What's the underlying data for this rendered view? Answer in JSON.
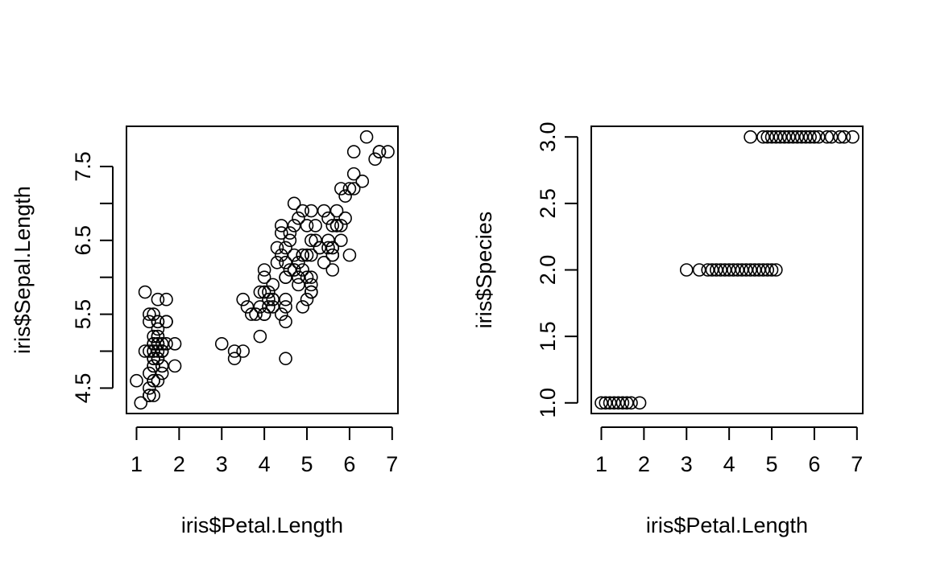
{
  "chart_data": [
    {
      "type": "scatter",
      "title": "",
      "xlabel": "iris$Petal.Length",
      "ylabel": "iris$Sepal.Length",
      "xlim": [
        0.764,
        7.136
      ],
      "ylim": [
        4.156,
        8.044
      ],
      "xticks": [
        1,
        2,
        3,
        4,
        5,
        6,
        7
      ],
      "yticks": [
        4.5,
        5.5,
        6.5,
        7.5
      ],
      "yticks_minor": [
        5.0,
        6.0,
        7.0
      ],
      "grid": false,
      "marker": "open-circle",
      "points": [
        [
          1.4,
          5.1
        ],
        [
          1.4,
          4.9
        ],
        [
          1.3,
          4.7
        ],
        [
          1.5,
          4.6
        ],
        [
          1.4,
          5.0
        ],
        [
          1.7,
          5.4
        ],
        [
          1.4,
          4.6
        ],
        [
          1.5,
          5.0
        ],
        [
          1.4,
          4.4
        ],
        [
          1.5,
          4.9
        ],
        [
          1.5,
          5.4
        ],
        [
          1.6,
          4.8
        ],
        [
          1.4,
          4.8
        ],
        [
          1.1,
          4.3
        ],
        [
          1.2,
          5.8
        ],
        [
          1.5,
          5.7
        ],
        [
          1.3,
          5.4
        ],
        [
          1.4,
          5.1
        ],
        [
          1.7,
          5.7
        ],
        [
          1.5,
          5.1
        ],
        [
          1.7,
          5.4
        ],
        [
          1.5,
          5.1
        ],
        [
          1.0,
          4.6
        ],
        [
          1.7,
          5.1
        ],
        [
          1.9,
          4.8
        ],
        [
          1.6,
          5.0
        ],
        [
          1.6,
          5.0
        ],
        [
          1.5,
          5.2
        ],
        [
          1.4,
          5.2
        ],
        [
          1.6,
          4.7
        ],
        [
          1.6,
          4.8
        ],
        [
          1.5,
          5.4
        ],
        [
          1.5,
          5.2
        ],
        [
          1.4,
          5.5
        ],
        [
          1.5,
          4.9
        ],
        [
          1.2,
          5.0
        ],
        [
          1.3,
          5.5
        ],
        [
          1.4,
          4.9
        ],
        [
          1.3,
          4.4
        ],
        [
          1.5,
          5.1
        ],
        [
          1.3,
          5.0
        ],
        [
          1.3,
          4.5
        ],
        [
          1.3,
          4.4
        ],
        [
          1.6,
          5.0
        ],
        [
          1.9,
          5.1
        ],
        [
          1.4,
          4.8
        ],
        [
          1.6,
          5.1
        ],
        [
          1.4,
          4.6
        ],
        [
          1.5,
          5.3
        ],
        [
          1.4,
          5.0
        ],
        [
          4.7,
          7.0
        ],
        [
          4.5,
          6.4
        ],
        [
          4.9,
          6.9
        ],
        [
          4.0,
          5.5
        ],
        [
          4.6,
          6.5
        ],
        [
          4.5,
          5.7
        ],
        [
          4.7,
          6.3
        ],
        [
          3.3,
          4.9
        ],
        [
          4.6,
          6.6
        ],
        [
          3.9,
          5.2
        ],
        [
          3.5,
          5.0
        ],
        [
          4.2,
          5.9
        ],
        [
          4.0,
          6.0
        ],
        [
          4.7,
          6.1
        ],
        [
          3.6,
          5.6
        ],
        [
          4.4,
          6.7
        ],
        [
          4.5,
          5.6
        ],
        [
          4.1,
          5.8
        ],
        [
          4.5,
          6.2
        ],
        [
          3.9,
          5.6
        ],
        [
          4.8,
          5.9
        ],
        [
          4.0,
          6.1
        ],
        [
          4.9,
          6.3
        ],
        [
          4.7,
          6.1
        ],
        [
          4.3,
          6.4
        ],
        [
          4.4,
          6.6
        ],
        [
          4.8,
          6.8
        ],
        [
          5.0,
          6.7
        ],
        [
          4.5,
          6.0
        ],
        [
          3.5,
          5.7
        ],
        [
          3.8,
          5.5
        ],
        [
          3.7,
          5.5
        ],
        [
          3.9,
          5.8
        ],
        [
          5.1,
          6.0
        ],
        [
          4.5,
          5.4
        ],
        [
          4.5,
          6.0
        ],
        [
          4.7,
          6.7
        ],
        [
          4.4,
          6.3
        ],
        [
          4.1,
          5.6
        ],
        [
          4.0,
          5.5
        ],
        [
          4.4,
          5.5
        ],
        [
          4.6,
          6.1
        ],
        [
          4.0,
          5.8
        ],
        [
          3.3,
          5.0
        ],
        [
          4.2,
          5.6
        ],
        [
          4.2,
          5.7
        ],
        [
          4.2,
          5.7
        ],
        [
          4.3,
          6.2
        ],
        [
          3.0,
          5.1
        ],
        [
          4.1,
          5.7
        ],
        [
          6.0,
          6.3
        ],
        [
          5.1,
          5.8
        ],
        [
          5.9,
          7.1
        ],
        [
          5.6,
          6.3
        ],
        [
          5.8,
          6.5
        ],
        [
          6.6,
          7.6
        ],
        [
          4.5,
          4.9
        ],
        [
          6.3,
          7.3
        ],
        [
          5.8,
          6.7
        ],
        [
          6.1,
          7.2
        ],
        [
          5.1,
          6.5
        ],
        [
          5.3,
          6.4
        ],
        [
          5.5,
          6.8
        ],
        [
          5.0,
          5.7
        ],
        [
          5.1,
          5.8
        ],
        [
          5.3,
          6.4
        ],
        [
          5.5,
          6.5
        ],
        [
          6.7,
          7.7
        ],
        [
          6.9,
          7.7
        ],
        [
          5.0,
          6.0
        ],
        [
          5.7,
          6.9
        ],
        [
          4.9,
          5.6
        ],
        [
          6.7,
          7.7
        ],
        [
          4.9,
          6.3
        ],
        [
          5.7,
          6.7
        ],
        [
          6.0,
          7.2
        ],
        [
          4.8,
          6.2
        ],
        [
          4.9,
          6.1
        ],
        [
          5.6,
          6.4
        ],
        [
          5.8,
          7.2
        ],
        [
          6.1,
          7.4
        ],
        [
          6.4,
          7.9
        ],
        [
          5.6,
          6.4
        ],
        [
          5.1,
          6.3
        ],
        [
          5.6,
          6.1
        ],
        [
          6.1,
          7.7
        ],
        [
          5.6,
          6.3
        ],
        [
          5.5,
          6.4
        ],
        [
          4.8,
          6.0
        ],
        [
          5.4,
          6.9
        ],
        [
          5.6,
          6.7
        ],
        [
          5.1,
          6.9
        ],
        [
          5.1,
          5.8
        ],
        [
          5.9,
          6.8
        ],
        [
          5.7,
          6.7
        ],
        [
          5.2,
          6.7
        ],
        [
          5.0,
          6.3
        ],
        [
          5.2,
          6.5
        ],
        [
          5.4,
          6.2
        ],
        [
          5.1,
          5.9
        ]
      ]
    },
    {
      "type": "scatter",
      "title": "",
      "xlabel": "iris$Petal.Length",
      "ylabel": "iris$Species",
      "xlim": [
        0.764,
        7.136
      ],
      "ylim": [
        0.92,
        3.08
      ],
      "xticks": [
        1,
        2,
        3,
        4,
        5,
        6,
        7
      ],
      "yticks": [
        1.0,
        1.5,
        2.0,
        2.5,
        3.0
      ],
      "ytick_labels": [
        "1.0",
        "1.5",
        "2.0",
        "2.5",
        "3.0"
      ],
      "grid": false,
      "marker": "open-circle",
      "points": [
        [
          1.0,
          1
        ],
        [
          1.1,
          1
        ],
        [
          1.2,
          1
        ],
        [
          1.3,
          1
        ],
        [
          1.4,
          1
        ],
        [
          1.5,
          1
        ],
        [
          1.6,
          1
        ],
        [
          1.7,
          1
        ],
        [
          1.9,
          1
        ],
        [
          3.0,
          2
        ],
        [
          3.3,
          2
        ],
        [
          3.5,
          2
        ],
        [
          3.6,
          2
        ],
        [
          3.7,
          2
        ],
        [
          3.8,
          2
        ],
        [
          3.9,
          2
        ],
        [
          4.0,
          2
        ],
        [
          4.1,
          2
        ],
        [
          4.2,
          2
        ],
        [
          4.3,
          2
        ],
        [
          4.4,
          2
        ],
        [
          4.5,
          2
        ],
        [
          4.6,
          2
        ],
        [
          4.7,
          2
        ],
        [
          4.8,
          2
        ],
        [
          4.9,
          2
        ],
        [
          5.0,
          2
        ],
        [
          5.1,
          2
        ],
        [
          4.5,
          3
        ],
        [
          4.8,
          3
        ],
        [
          4.9,
          3
        ],
        [
          5.0,
          3
        ],
        [
          5.1,
          3
        ],
        [
          5.2,
          3
        ],
        [
          5.3,
          3
        ],
        [
          5.4,
          3
        ],
        [
          5.5,
          3
        ],
        [
          5.6,
          3
        ],
        [
          5.7,
          3
        ],
        [
          5.8,
          3
        ],
        [
          5.9,
          3
        ],
        [
          6.0,
          3
        ],
        [
          6.1,
          3
        ],
        [
          6.3,
          3
        ],
        [
          6.4,
          3
        ],
        [
          6.6,
          3
        ],
        [
          6.7,
          3
        ],
        [
          6.9,
          3
        ]
      ]
    }
  ]
}
